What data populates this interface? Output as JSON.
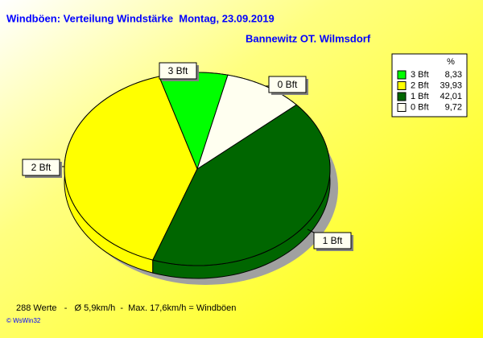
{
  "chart_data": {
    "type": "pie",
    "title": "Windböen: Verteilung Windstärke  Montag, 23.09.2019",
    "subtitle": "Bannewitz OT. Wilmsdorf",
    "legend_header": "%",
    "categories": [
      "3 Bft",
      "2 Bft",
      "1 Bft",
      "0 Bft"
    ],
    "values": [
      8.33,
      39.93,
      42.01,
      9.72
    ],
    "value_labels": [
      "8,33",
      "39,93",
      "42,01",
      "9,72"
    ],
    "colors": [
      "#00ff00",
      "#ffff00",
      "#006600",
      "#fffff0"
    ],
    "legend": "top-right",
    "footer": "288 Werte   -   Ø 5,9km/h  -  Max. 17,6km/h = Windböen",
    "copyright": "© WsWin32"
  }
}
